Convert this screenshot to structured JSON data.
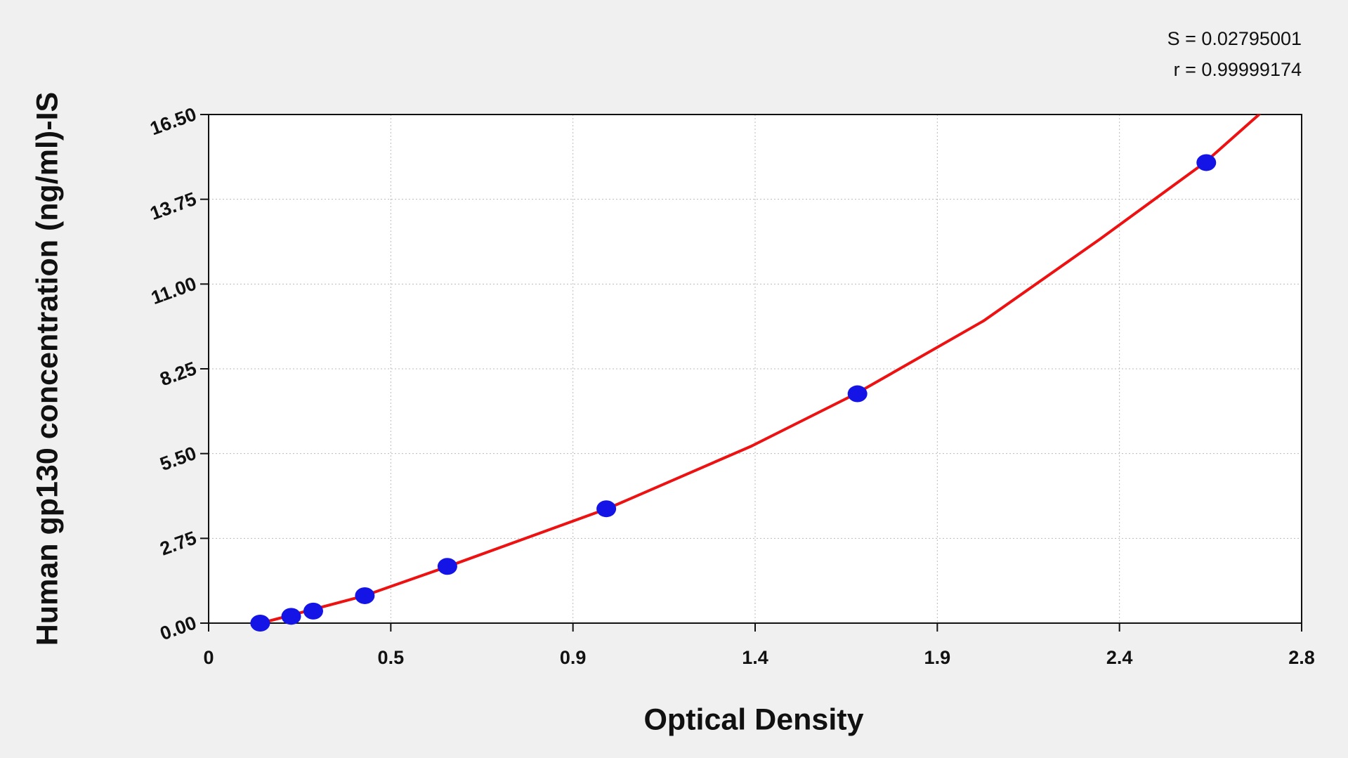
{
  "chart_data": {
    "type": "scatter",
    "annotations": [
      "S = 0.02795001",
      "r = 0.99999174"
    ],
    "xlabel": "Optical Density",
    "ylabel": "Human gp130 concentration (ng/ml)-IS",
    "xlim": [
      0,
      2.82
    ],
    "ylim": [
      0,
      16.5
    ],
    "xticks": [
      0,
      {
        "value": 0.47,
        "label": "0.5"
      },
      {
        "value": 0.94,
        "label": "0.9"
      },
      {
        "value": 1.41,
        "label": "1.4"
      },
      {
        "value": 1.88,
        "label": "1.9"
      },
      {
        "value": 2.35,
        "label": "2.4"
      },
      {
        "value": 2.82,
        "label": "2.8"
      }
    ],
    "yticks": [
      {
        "value": 0,
        "label": "0.00"
      },
      {
        "value": 2.75,
        "label": "2.75"
      },
      {
        "value": 5.5,
        "label": "5.50"
      },
      {
        "value": 8.25,
        "label": "8.25"
      },
      {
        "value": 11,
        "label": "11.00"
      },
      {
        "value": 13.75,
        "label": "13.75"
      },
      {
        "value": 16.5,
        "label": "16.50"
      }
    ],
    "grid": true,
    "series": [
      {
        "color": "#1414e6",
        "x": [
          0.133,
          0.213,
          0.27,
          0.403,
          0.616,
          1.026,
          1.674,
          2.574
        ],
        "values": [
          0,
          0.22,
          0.39,
          0.89,
          1.84,
          3.71,
          7.44,
          14.94
        ]
      },
      {
        "type": "line",
        "color": "#ee1111",
        "x": [
          0.12,
          0.4,
          0.62,
          1.03,
          1.4,
          1.67,
          2.0,
          2.3,
          2.57,
          2.72
        ],
        "values": [
          -0.05,
          0.88,
          1.85,
          3.72,
          5.74,
          7.44,
          9.81,
          12.46,
          14.94,
          16.61
        ]
      }
    ]
  }
}
